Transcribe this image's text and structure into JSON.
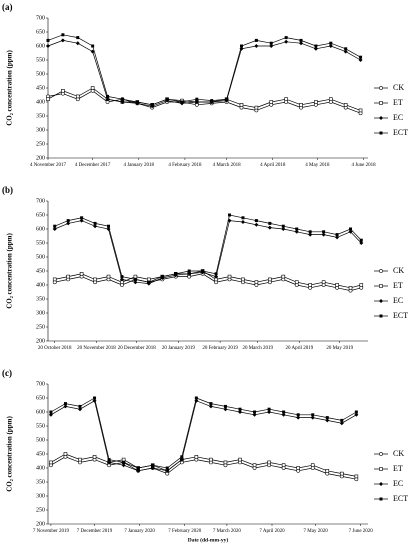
{
  "chart_data": [
    {
      "type": "line",
      "panel": "(a)",
      "ylabel": "CO₂ concentration (ppm)",
      "xlim": [
        "2017-11-04",
        "2018-06-07"
      ],
      "ylim": [
        200,
        700
      ],
      "yticks": [
        200,
        250,
        300,
        350,
        400,
        450,
        500,
        550,
        600,
        650,
        700
      ],
      "xticks": [
        {
          "value": "2017-11-04",
          "label": "4 November 2017"
        },
        {
          "value": "2017-12-04",
          "label": "4 December 2017"
        },
        {
          "value": "2018-01-04",
          "label": "4 January 2018"
        },
        {
          "value": "2018-02-04",
          "label": "4 February 2018"
        },
        {
          "value": "2018-03-04",
          "label": "4 March 2018"
        },
        {
          "value": "2018-04-04",
          "label": "4 April 2018"
        },
        {
          "value": "2018-05-04",
          "label": "4 May 2018"
        },
        {
          "value": "2018-06-04",
          "label": "4 June 2018"
        }
      ],
      "x": [
        "2017-11-04",
        "2017-11-14",
        "2017-11-24",
        "2017-12-04",
        "2017-12-14",
        "2017-12-24",
        "2018-01-03",
        "2018-01-13",
        "2018-01-23",
        "2018-02-02",
        "2018-02-12",
        "2018-02-22",
        "2018-03-04",
        "2018-03-14",
        "2018-03-24",
        "2018-04-03",
        "2018-04-13",
        "2018-04-23",
        "2018-05-03",
        "2018-05-13",
        "2018-05-23",
        "2018-06-02"
      ],
      "series": [
        {
          "name": "CK",
          "color": "#000000",
          "marker": "circle-open",
          "values": [
            420,
            430,
            410,
            440,
            400,
            410,
            395,
            380,
            400,
            400,
            390,
            395,
            400,
            380,
            370,
            390,
            400,
            380,
            390,
            400,
            380,
            360
          ]
        },
        {
          "name": "ET",
          "color": "#000000",
          "marker": "square-open",
          "values": [
            410,
            440,
            420,
            450,
            410,
            400,
            400,
            390,
            410,
            405,
            400,
            400,
            410,
            390,
            380,
            400,
            410,
            390,
            400,
            410,
            390,
            370
          ]
        },
        {
          "name": "EC",
          "color": "#000000",
          "marker": "diamond",
          "values": [
            600,
            620,
            610,
            580,
            410,
            400,
            395,
            385,
            405,
            395,
            400,
            400,
            405,
            590,
            600,
            600,
            615,
            610,
            590,
            600,
            580,
            550
          ]
        },
        {
          "name": "ECT",
          "color": "#000000",
          "marker": "square",
          "values": [
            620,
            640,
            630,
            600,
            420,
            410,
            400,
            390,
            410,
            400,
            410,
            405,
            410,
            600,
            620,
            610,
            630,
            620,
            600,
            610,
            590,
            560
          ]
        }
      ]
    },
    {
      "type": "line",
      "panel": "(b)",
      "ylabel": "CO₂ concentration (ppm)",
      "xlim": [
        "2018-10-15",
        "2019-06-10"
      ],
      "ylim": [
        200,
        700
      ],
      "yticks": [
        200,
        250,
        300,
        350,
        400,
        450,
        500,
        550,
        600,
        650,
        700
      ],
      "xticks": [
        {
          "value": "2018-10-20",
          "label": "20 October 2018"
        },
        {
          "value": "2018-11-20",
          "label": "20 November 2018"
        },
        {
          "value": "2018-12-20",
          "label": "20 December 2018"
        },
        {
          "value": "2019-01-20",
          "label": "20 January 2019"
        },
        {
          "value": "2019-02-20",
          "label": "20 February 2019"
        },
        {
          "value": "2019-03-20",
          "label": "20 March 2019"
        },
        {
          "value": "2019-04-20",
          "label": "20 April 2019"
        },
        {
          "value": "2019-05-20",
          "label": "20 May 2019"
        }
      ],
      "x": [
        "2018-10-20",
        "2018-10-30",
        "2018-11-09",
        "2018-11-19",
        "2018-11-29",
        "2018-12-09",
        "2018-12-19",
        "2018-12-29",
        "2019-01-08",
        "2019-01-18",
        "2019-01-28",
        "2019-02-07",
        "2019-02-17",
        "2019-02-27",
        "2019-03-09",
        "2019-03-19",
        "2019-03-29",
        "2019-04-08",
        "2019-04-18",
        "2019-04-28",
        "2019-05-08",
        "2019-05-18",
        "2019-05-28",
        "2019-06-05"
      ],
      "series": [
        {
          "name": "CK",
          "color": "#000000",
          "marker": "circle-open",
          "values": [
            410,
            420,
            430,
            410,
            420,
            400,
            420,
            410,
            420,
            430,
            430,
            440,
            410,
            420,
            410,
            400,
            410,
            420,
            400,
            390,
            400,
            390,
            380,
            390
          ]
        },
        {
          "name": "ET",
          "color": "#000000",
          "marker": "square-open",
          "values": [
            420,
            430,
            440,
            420,
            430,
            410,
            430,
            420,
            430,
            440,
            440,
            450,
            420,
            430,
            420,
            410,
            420,
            430,
            410,
            400,
            410,
            400,
            390,
            400
          ]
        },
        {
          "name": "EC",
          "color": "#000000",
          "marker": "diamond",
          "values": [
            600,
            620,
            630,
            610,
            600,
            420,
            410,
            405,
            425,
            435,
            440,
            445,
            430,
            630,
            625,
            615,
            605,
            600,
            590,
            580,
            580,
            570,
            590,
            550
          ]
        },
        {
          "name": "ECT",
          "color": "#000000",
          "marker": "square",
          "values": [
            610,
            630,
            640,
            620,
            610,
            430,
            420,
            410,
            430,
            440,
            450,
            450,
            440,
            650,
            640,
            630,
            620,
            610,
            600,
            590,
            590,
            580,
            600,
            560
          ]
        }
      ]
    },
    {
      "type": "line",
      "panel": "(c)",
      "ylabel": "CO₂ concentration (ppm)",
      "xlabel": "Date (dd-mm-yy)",
      "xlim": [
        "2019-11-05",
        "2020-06-12"
      ],
      "ylim": [
        200,
        700
      ],
      "yticks": [
        200,
        250,
        300,
        350,
        400,
        450,
        500,
        550,
        600,
        650,
        700
      ],
      "xticks": [
        {
          "value": "2019-11-07",
          "label": "7 November 2019"
        },
        {
          "value": "2019-12-07",
          "label": "7 December 2019"
        },
        {
          "value": "2020-01-07",
          "label": "7 January 2020"
        },
        {
          "value": "2020-02-07",
          "label": "7 February 2020"
        },
        {
          "value": "2020-03-07",
          "label": "7 March 2020"
        },
        {
          "value": "2020-04-07",
          "label": "7 April 2020"
        },
        {
          "value": "2020-05-07",
          "label": "7 May 2020"
        },
        {
          "value": "2020-06-07",
          "label": "7 June 2020"
        }
      ],
      "x": [
        "2019-11-07",
        "2019-11-17",
        "2019-11-27",
        "2019-12-07",
        "2019-12-17",
        "2019-12-27",
        "2020-01-06",
        "2020-01-16",
        "2020-01-26",
        "2020-02-05",
        "2020-02-15",
        "2020-02-25",
        "2020-03-06",
        "2020-03-16",
        "2020-03-26",
        "2020-04-05",
        "2020-04-15",
        "2020-04-25",
        "2020-05-05",
        "2020-05-15",
        "2020-05-25",
        "2020-06-04"
      ],
      "series": [
        {
          "name": "CK",
          "color": "#000000",
          "marker": "circle-open",
          "values": [
            410,
            440,
            420,
            430,
            410,
            420,
            390,
            400,
            380,
            420,
            430,
            420,
            410,
            420,
            400,
            410,
            400,
            390,
            400,
            380,
            370,
            360
          ]
        },
        {
          "name": "ET",
          "color": "#000000",
          "marker": "square-open",
          "values": [
            420,
            450,
            430,
            440,
            420,
            430,
            400,
            410,
            390,
            430,
            440,
            430,
            420,
            430,
            410,
            420,
            410,
            400,
            410,
            390,
            380,
            370
          ]
        },
        {
          "name": "EC",
          "color": "#000000",
          "marker": "diamond",
          "values": [
            590,
            620,
            610,
            640,
            420,
            410,
            390,
            400,
            390,
            430,
            640,
            620,
            610,
            600,
            590,
            600,
            590,
            580,
            580,
            570,
            560,
            590
          ]
        },
        {
          "name": "ECT",
          "color": "#000000",
          "marker": "square",
          "values": [
            600,
            630,
            620,
            650,
            430,
            420,
            400,
            410,
            400,
            440,
            650,
            630,
            620,
            610,
            600,
            610,
            600,
            590,
            590,
            580,
            570,
            600
          ]
        }
      ]
    }
  ]
}
